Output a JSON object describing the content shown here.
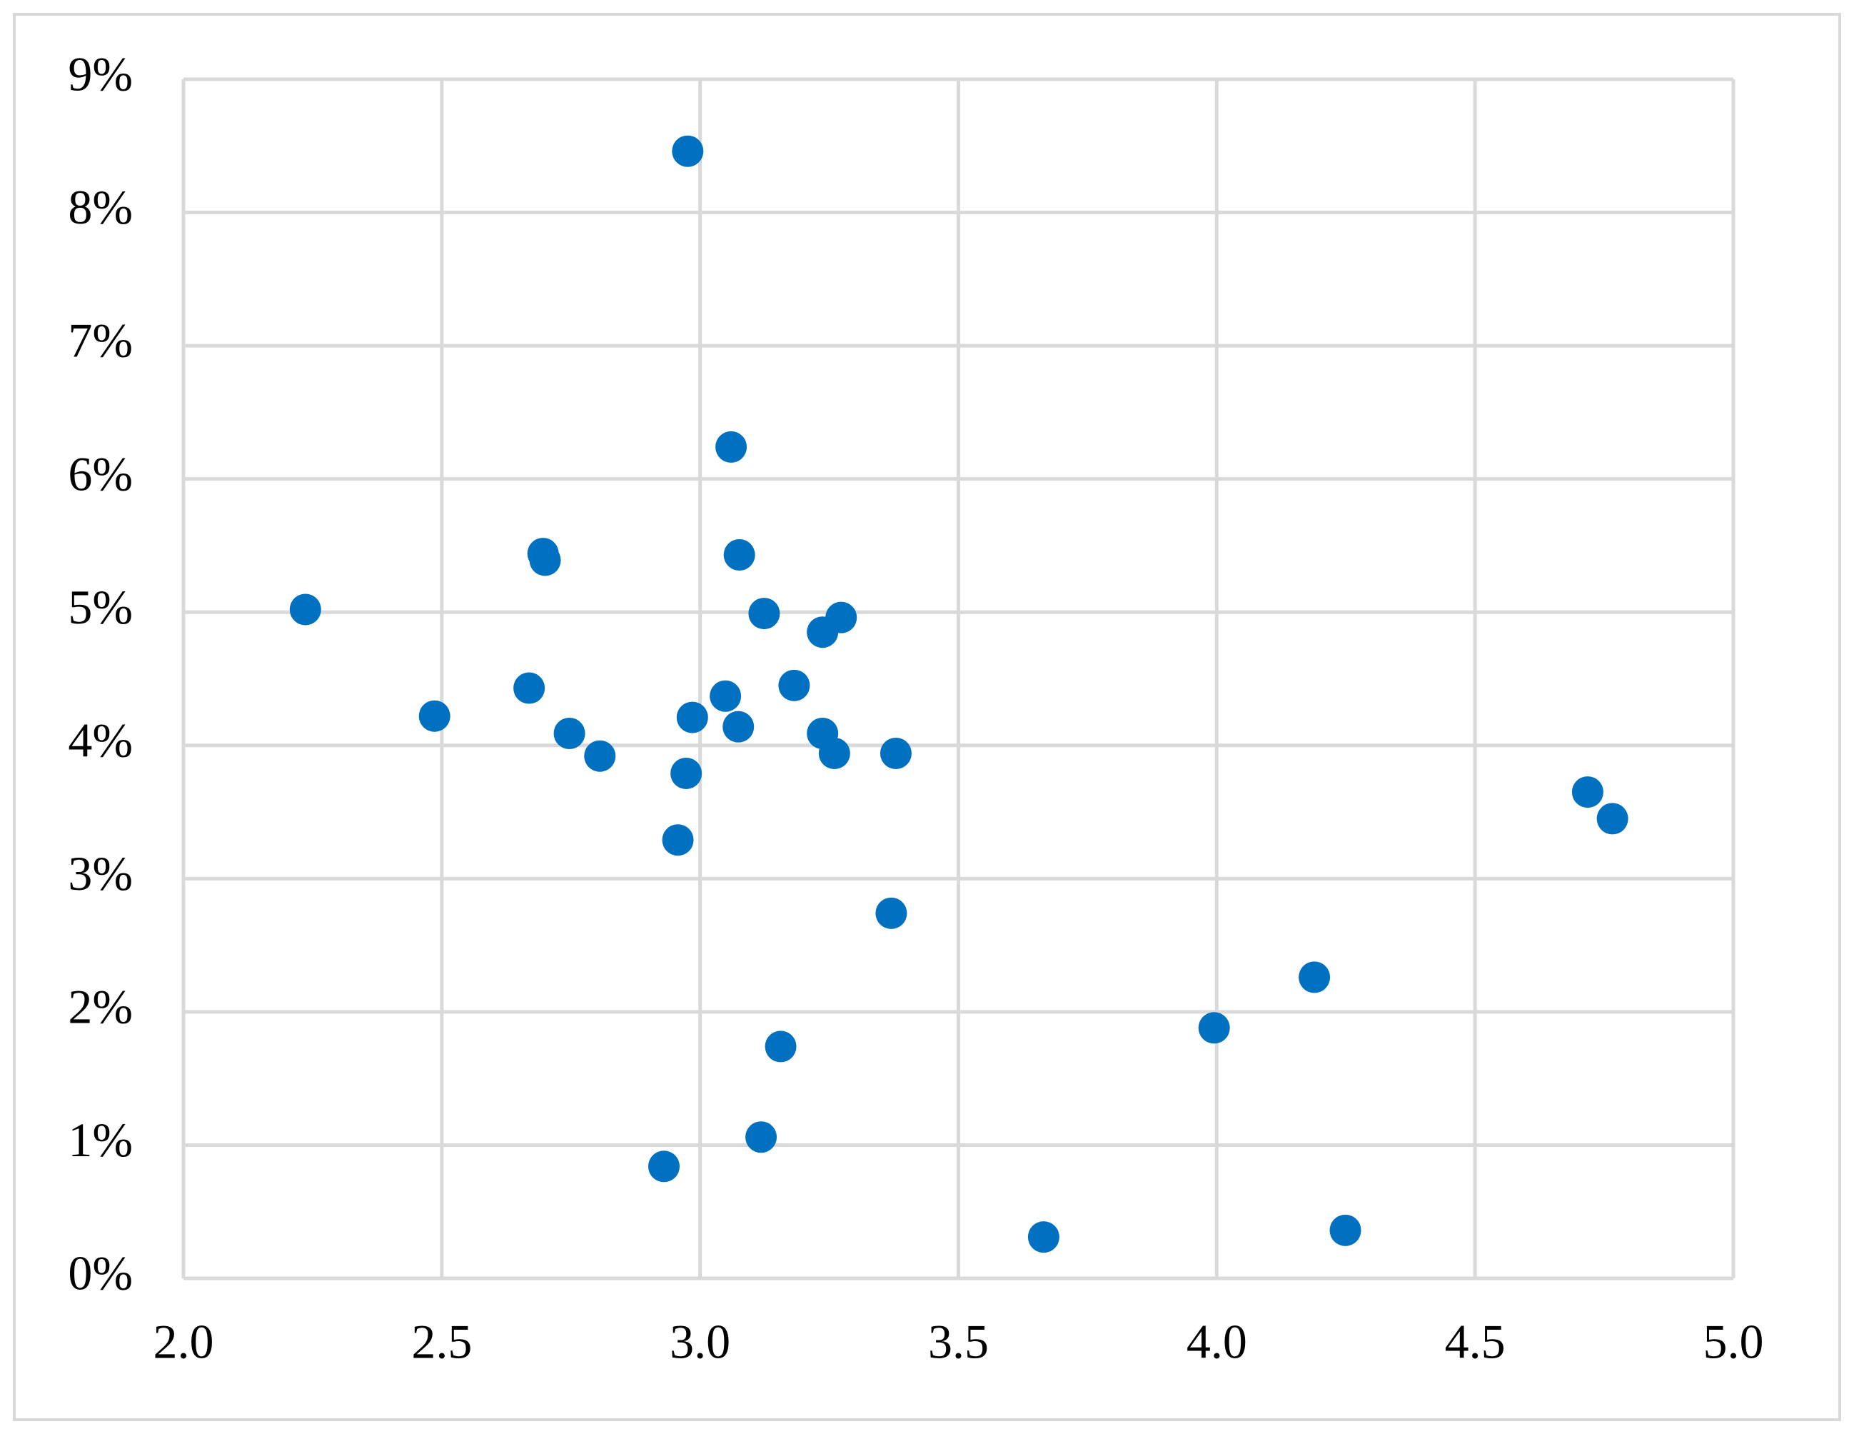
{
  "chart_data": {
    "type": "scatter",
    "color": "#0070c0",
    "grid": true,
    "x": [
      2.236,
      2.486,
      2.669,
      2.696,
      2.7,
      2.747,
      2.806,
      2.93,
      2.957,
      2.973,
      2.976,
      2.985,
      3.049,
      3.06,
      3.074,
      3.076,
      3.118,
      3.124,
      3.156,
      3.182,
      3.237,
      3.237,
      3.26,
      3.273,
      3.37,
      3.379,
      3.665,
      3.995,
      4.189,
      4.249,
      4.718,
      4.766
    ],
    "values": [
      5.02,
      4.22,
      4.43,
      5.44,
      5.39,
      4.09,
      3.92,
      0.84,
      3.29,
      3.79,
      8.46,
      4.21,
      4.37,
      6.24,
      4.14,
      5.43,
      1.06,
      4.99,
      1.74,
      4.45,
      4.85,
      4.09,
      3.94,
      4.96,
      2.74,
      3.94,
      0.31,
      1.88,
      2.26,
      0.36,
      3.65,
      3.45
    ],
    "xlim": [
      2,
      5
    ],
    "xticks": [
      {
        "value": 2,
        "label": "2.0"
      },
      {
        "value": 2.5,
        "label": "2.5"
      },
      {
        "value": 3,
        "label": "3.0"
      },
      {
        "value": 3.5,
        "label": "3.5"
      },
      {
        "value": 4,
        "label": "4.0"
      },
      {
        "value": 4.5,
        "label": "4.5"
      },
      {
        "value": 5,
        "label": "5.0"
      }
    ],
    "ylim": [
      0,
      9
    ],
    "yticks": [
      {
        "value": 0,
        "label": "0%"
      },
      {
        "value": 1,
        "label": "1%"
      },
      {
        "value": 2,
        "label": "2%"
      },
      {
        "value": 3,
        "label": "3%"
      },
      {
        "value": 4,
        "label": "4%"
      },
      {
        "value": 5,
        "label": "5%"
      },
      {
        "value": 6,
        "label": "6%"
      },
      {
        "value": 7,
        "label": "7%"
      },
      {
        "value": 8,
        "label": "8%"
      },
      {
        "value": 9,
        "label": "9%"
      }
    ]
  }
}
